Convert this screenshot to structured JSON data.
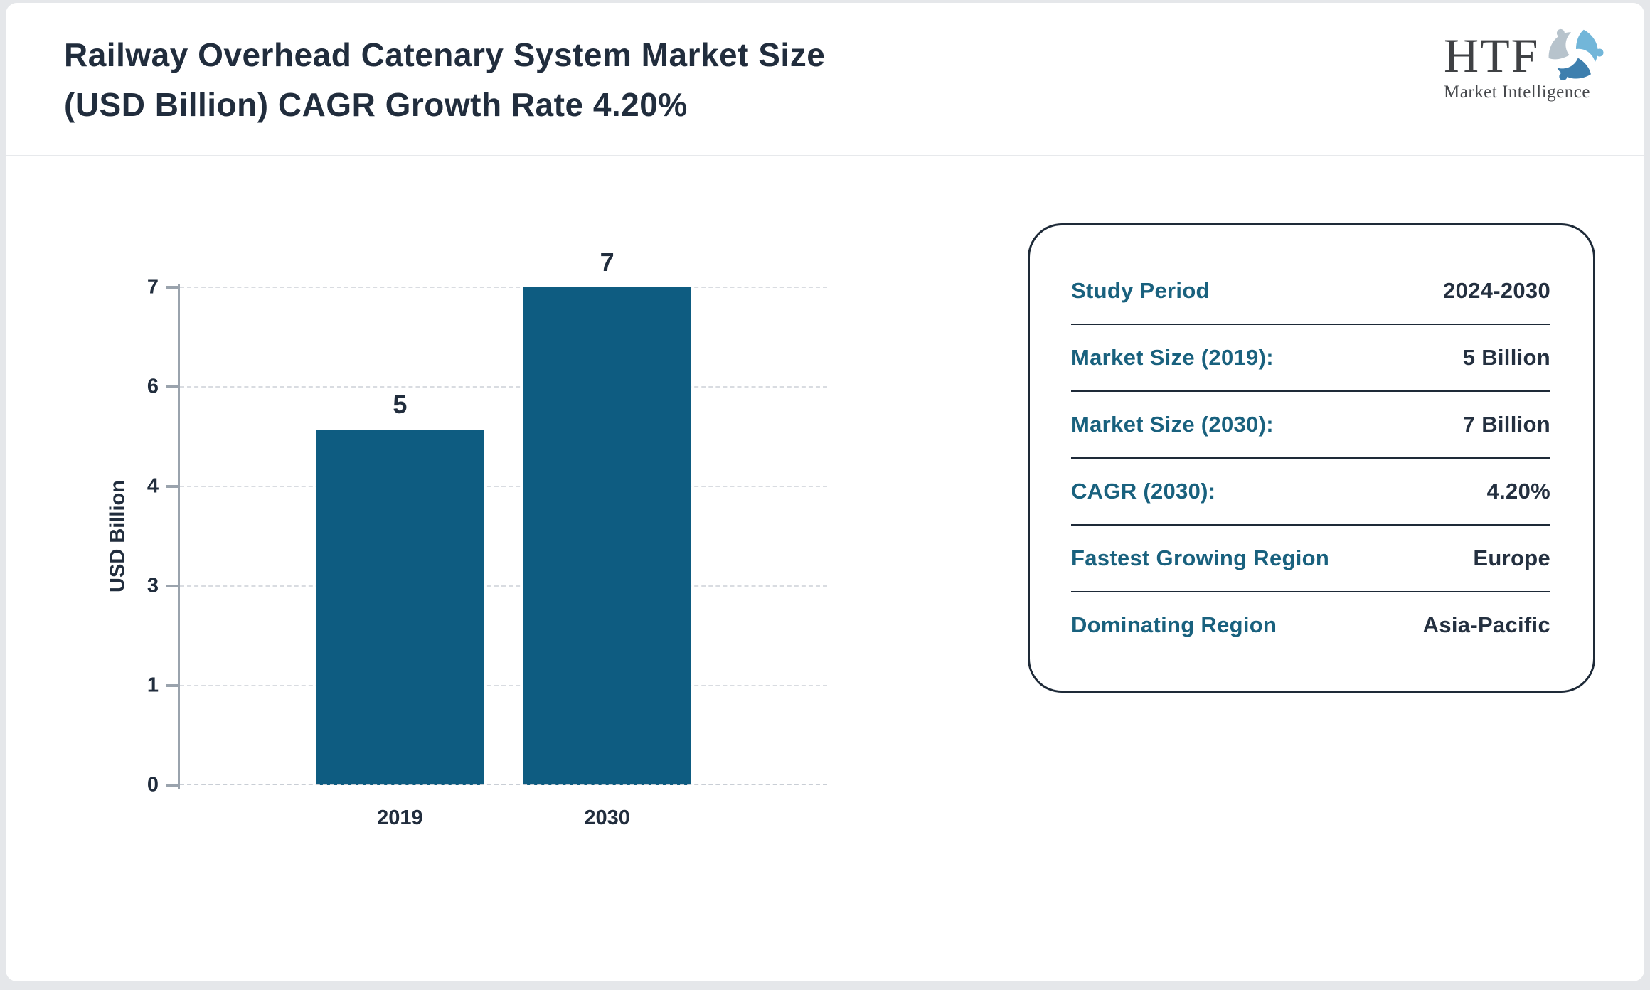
{
  "header": {
    "title_line1": "Railway Overhead Catenary System Market Size",
    "title_line2": "(USD Billion) CAGR Growth Rate 4.20%",
    "logo_text": "HTF",
    "logo_subtext": "Market Intelligence"
  },
  "chart_data": {
    "type": "bar",
    "title": "",
    "categories": [
      "2019",
      "2030"
    ],
    "values": [
      5,
      7
    ],
    "value_labels": [
      "5",
      "7"
    ],
    "xlabel": "",
    "ylabel": "USD Billion",
    "ylim": [
      0,
      7
    ],
    "ytick_labels_bottom_to_top": [
      "0",
      "1",
      "3",
      "4",
      "6",
      "7"
    ],
    "grid": "horizontal-dashed",
    "legend": "none",
    "bar_color": "#0e5c81"
  },
  "summary_card": {
    "rows": [
      {
        "label": "Study Period",
        "value": "2024-2030"
      },
      {
        "label": "Market Size (2019):",
        "value": "5 Billion"
      },
      {
        "label": "Market Size (2030):",
        "value": "7 Billion"
      },
      {
        "label": "CAGR (2030):",
        "value": "4.20%"
      },
      {
        "label": "Fastest Growing Region",
        "value": "Europe"
      },
      {
        "label": "Dominating Region",
        "value": "Asia-Pacific"
      }
    ]
  },
  "colors": {
    "page_background": "#e5e7ea",
    "card_background": "#ffffff",
    "title_text": "#212d3d",
    "label_teal": "#19617e",
    "value_navy": "#243040",
    "bar_fill": "#0e5c81",
    "axis_gray": "#9aa3ad",
    "gridline_gray": "#d9dce1",
    "card_border": "#1e2a38",
    "header_divider": "#e7e9ec",
    "logo_blue_light": "#72b6d9",
    "logo_blue_dark": "#3e7fae",
    "logo_gray": "#b7c3cc"
  }
}
